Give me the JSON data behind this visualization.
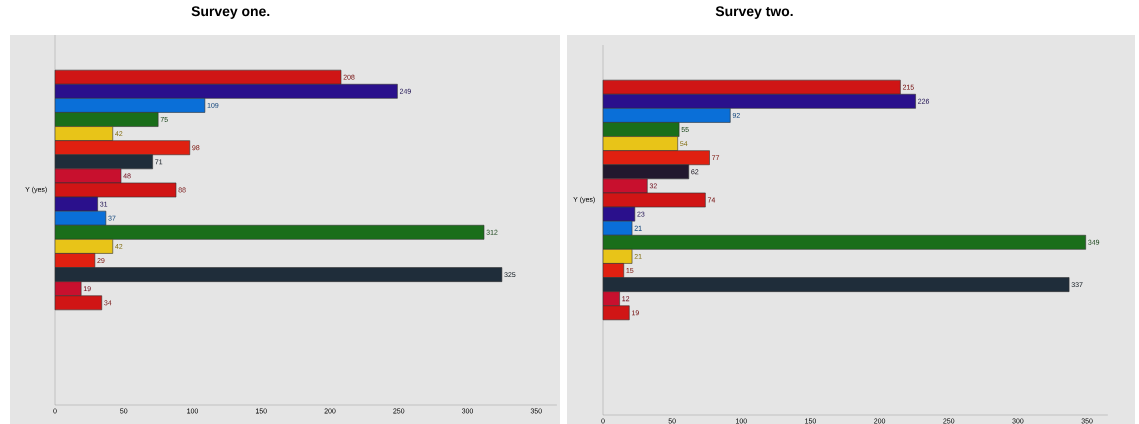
{
  "chart_data": [
    {
      "type": "bar",
      "orientation": "horizontal",
      "title": "Survey one.",
      "categories": [
        "Y (yes)"
      ],
      "xlim": [
        0,
        365
      ],
      "xticks": [
        0,
        50,
        100,
        150,
        200,
        250,
        300,
        350
      ],
      "data_labels": true,
      "series": [
        {
          "color": "#d01515",
          "values": [
            208
          ]
        },
        {
          "color": "#2a108c",
          "values": [
            249
          ]
        },
        {
          "color": "#0a6fd8",
          "values": [
            109
          ]
        },
        {
          "color": "#1a6e1a",
          "values": [
            75
          ]
        },
        {
          "color": "#e8c418",
          "values": [
            42
          ]
        },
        {
          "color": "#e02010",
          "values": [
            98
          ]
        },
        {
          "color": "#1f2d3a",
          "values": [
            71
          ]
        },
        {
          "color": "#c8102e",
          "values": [
            48
          ]
        },
        {
          "color": "#d01515",
          "values": [
            88
          ]
        },
        {
          "color": "#2a108c",
          "values": [
            31
          ]
        },
        {
          "color": "#0a6fd8",
          "values": [
            37
          ]
        },
        {
          "color": "#1a6e1a",
          "values": [
            312
          ]
        },
        {
          "color": "#e8c418",
          "values": [
            42
          ]
        },
        {
          "color": "#e02010",
          "values": [
            29
          ]
        },
        {
          "color": "#1f2d3a",
          "values": [
            325
          ]
        },
        {
          "color": "#c8102e",
          "values": [
            19
          ]
        },
        {
          "color": "#d01515",
          "values": [
            34
          ]
        }
      ]
    },
    {
      "type": "bar",
      "orientation": "horizontal",
      "title": "Survey two.",
      "categories": [
        "Y (yes)"
      ],
      "xlim": [
        0,
        365
      ],
      "xticks": [
        0,
        50,
        100,
        150,
        200,
        250,
        300,
        350
      ],
      "data_labels": true,
      "series": [
        {
          "color": "#d01515",
          "values": [
            215
          ]
        },
        {
          "color": "#2a108c",
          "values": [
            226
          ]
        },
        {
          "color": "#0a6fd8",
          "values": [
            92
          ]
        },
        {
          "color": "#1a6e1a",
          "values": [
            55
          ]
        },
        {
          "color": "#e8c418",
          "values": [
            54
          ]
        },
        {
          "color": "#e02010",
          "values": [
            77
          ]
        },
        {
          "color": "#22182e",
          "values": [
            62
          ]
        },
        {
          "color": "#c8102e",
          "values": [
            32
          ]
        },
        {
          "color": "#d01515",
          "values": [
            74
          ]
        },
        {
          "color": "#2a108c",
          "values": [
            23
          ]
        },
        {
          "color": "#0a6fd8",
          "values": [
            21
          ]
        },
        {
          "color": "#1a6e1a",
          "values": [
            349
          ]
        },
        {
          "color": "#e8c418",
          "values": [
            21
          ]
        },
        {
          "color": "#e02010",
          "values": [
            15
          ]
        },
        {
          "color": "#1f2d3a",
          "values": [
            337
          ]
        },
        {
          "color": "#c8102e",
          "values": [
            12
          ]
        },
        {
          "color": "#d01515",
          "values": [
            19
          ]
        }
      ]
    }
  ]
}
